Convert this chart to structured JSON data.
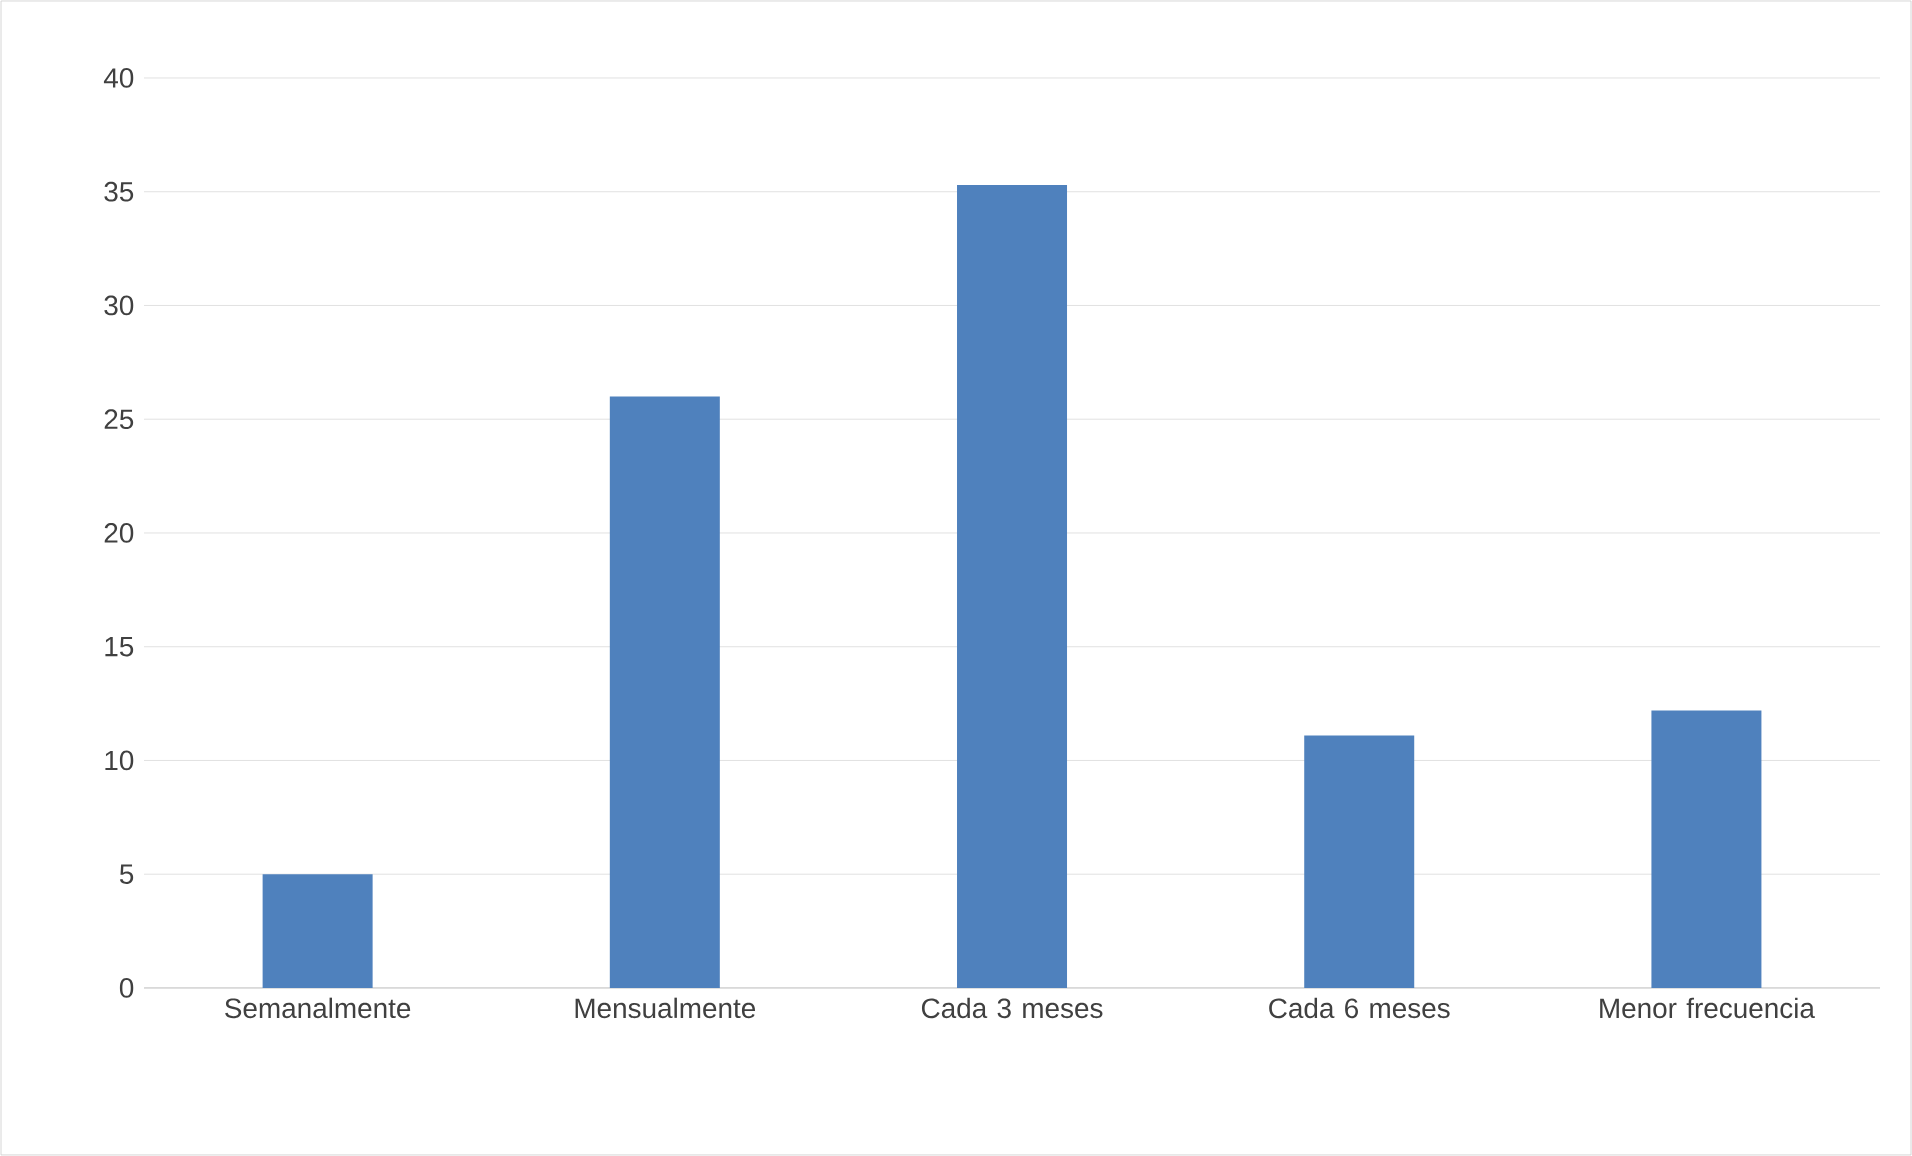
{
  "chart_data": {
    "type": "bar",
    "categories": [
      "Semanalmente",
      "Mensualmente",
      "Cada 3 meses",
      "Cada 6 meses",
      "Menor frecuencia"
    ],
    "values": [
      5,
      26,
      35.3,
      11.1,
      12.2
    ],
    "color": "#4f81bd",
    "ylim": [
      0,
      40
    ],
    "yticks": [
      0,
      5,
      10,
      15,
      20,
      25,
      30,
      35,
      40
    ],
    "grid": "y"
  }
}
